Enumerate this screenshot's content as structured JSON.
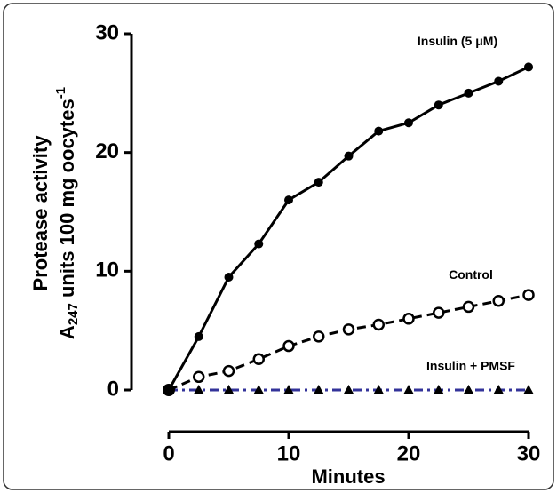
{
  "chart_data": {
    "type": "line",
    "x_label": "Minutes",
    "y_label": {
      "line1": "Protease activity",
      "base": "A",
      "sub": "247",
      "main": " units 100 mg oocytes",
      "sup": "-1"
    },
    "x": [
      0,
      2.5,
      5,
      7.5,
      10,
      12.5,
      15,
      17.5,
      20,
      22.5,
      25,
      27.5,
      30
    ],
    "series": [
      {
        "name": "Insulin + PMSF",
        "color": "#33339a",
        "line_style": "dash-dot",
        "marker": "triangle",
        "marker_color": "#000000",
        "values": [
          0,
          0,
          0,
          0,
          0,
          0,
          0,
          0,
          0,
          0,
          0,
          0,
          0
        ]
      },
      {
        "name": "Control",
        "color": "#000000",
        "line_style": "dashed",
        "marker": "open-circle",
        "marker_color": "#000000",
        "values": [
          0,
          1.1,
          1.6,
          2.6,
          3.7,
          4.5,
          5.1,
          5.5,
          6,
          6.5,
          7,
          7.5,
          8
        ]
      },
      {
        "name": "Insulin (5 μM)",
        "color": "#000000",
        "line_style": "solid",
        "marker": "filled-circle",
        "marker_color": "#000000",
        "values": [
          0,
          4.5,
          9.5,
          12.3,
          16,
          17.5,
          19.7,
          21.8,
          22.5,
          24,
          25,
          26,
          27.2
        ]
      }
    ],
    "xlim": [
      0,
      30
    ],
    "xticks": [
      0,
      10,
      20,
      30
    ],
    "ylim": [
      0,
      30
    ],
    "yticks": [
      0,
      10,
      20,
      30
    ],
    "grid": false
  }
}
